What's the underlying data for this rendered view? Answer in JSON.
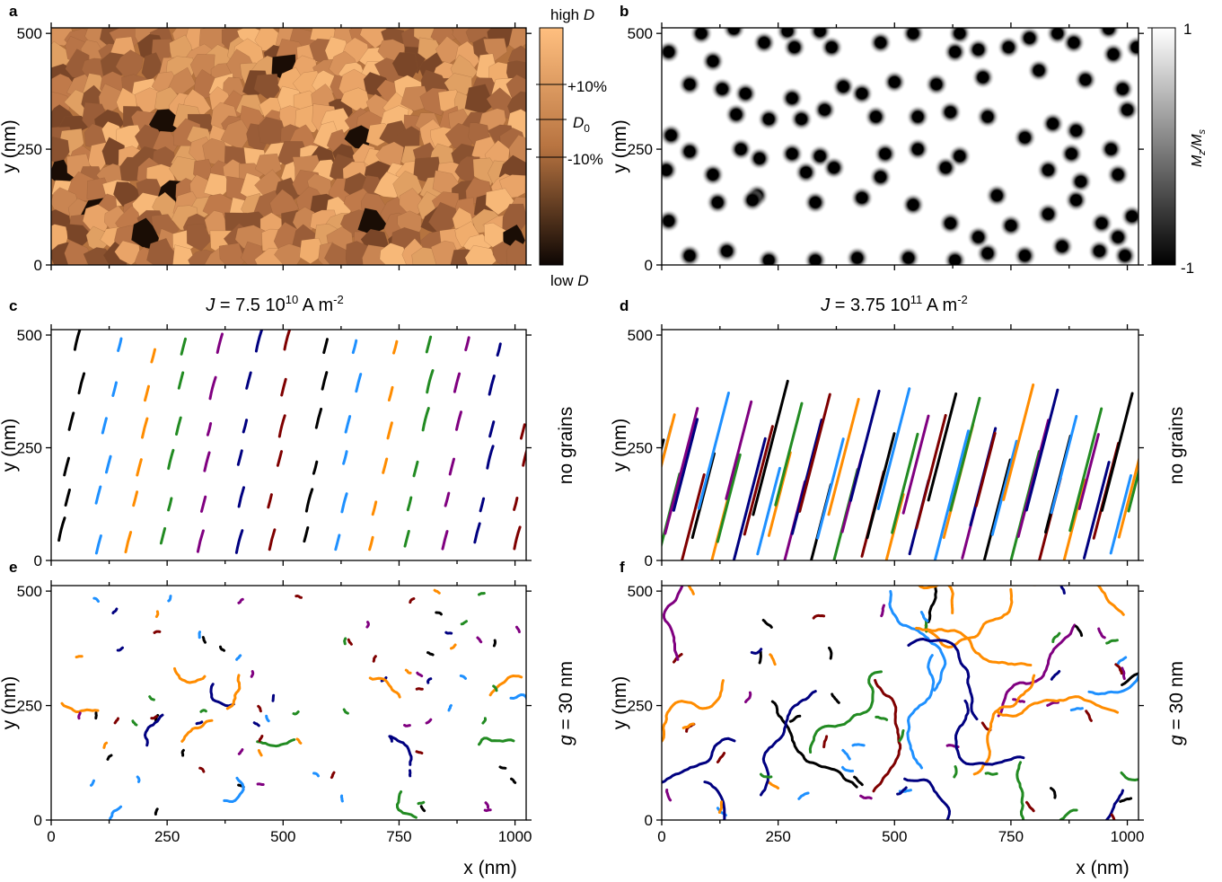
{
  "figure": {
    "panel_letters": [
      "a",
      "b",
      "c",
      "d",
      "e",
      "f"
    ],
    "colorbar_a": {
      "top": "high D",
      "bottom": "low D",
      "ticks": [
        "+10%",
        "D0",
        "-10%"
      ],
      "tick_subscript": "0",
      "tick_values": [
        0.1,
        0.0,
        -0.1
      ]
    },
    "colorbar_b": {
      "label": "Mz/Ms",
      "ticks": [
        "1",
        "-1"
      ],
      "range": [
        -1,
        1
      ]
    },
    "current_c": "J = 7.5 10^10 A m^-2",
    "current_d": "J = 3.75 10^11 A m^-2",
    "row_label_top": "no grains",
    "row_label_bottom": "g = 30 nm"
  },
  "chart_data": [
    {
      "panel": "a",
      "type": "heatmap",
      "description_values": "grain map of DMI strength D around D0",
      "xlabel": "",
      "ylabel": "y (nm)",
      "xlim": [
        0,
        1024
      ],
      "ylim": [
        0,
        512
      ],
      "yticks": [
        0,
        250,
        500
      ]
    },
    {
      "panel": "b",
      "type": "heatmap",
      "description_values": "skyrmion lattice Mz/Ms",
      "xlabel": "",
      "ylabel": "y (nm)",
      "xlim": [
        0,
        1024
      ],
      "ylim": [
        0,
        512
      ],
      "yticks": [
        0,
        250,
        500
      ],
      "skyrmions": [
        [
          85,
          500
        ],
        [
          155,
          510
        ],
        [
          270,
          505
        ],
        [
          340,
          505
        ],
        [
          540,
          500
        ],
        [
          640,
          500
        ],
        [
          850,
          500
        ],
        [
          960,
          510
        ],
        [
          15,
          460
        ],
        [
          110,
          440
        ],
        [
          220,
          480
        ],
        [
          285,
          470
        ],
        [
          365,
          470
        ],
        [
          470,
          480
        ],
        [
          630,
          460
        ],
        [
          680,
          465
        ],
        [
          745,
          470
        ],
        [
          790,
          490
        ],
        [
          885,
          480
        ],
        [
          970,
          455
        ],
        [
          1020,
          470
        ],
        [
          60,
          390
        ],
        [
          130,
          380
        ],
        [
          180,
          370
        ],
        [
          280,
          360
        ],
        [
          390,
          385
        ],
        [
          430,
          370
        ],
        [
          500,
          395
        ],
        [
          590,
          390
        ],
        [
          690,
          405
        ],
        [
          810,
          420
        ],
        [
          910,
          400
        ],
        [
          990,
          380
        ],
        [
          160,
          325
        ],
        [
          230,
          315
        ],
        [
          300,
          315
        ],
        [
          350,
          335
        ],
        [
          460,
          320
        ],
        [
          550,
          320
        ],
        [
          620,
          330
        ],
        [
          700,
          320
        ],
        [
          840,
          305
        ],
        [
          890,
          290
        ],
        [
          1000,
          335
        ],
        [
          60,
          245
        ],
        [
          170,
          250
        ],
        [
          210,
          230
        ],
        [
          280,
          240
        ],
        [
          340,
          235
        ],
        [
          480,
          240
        ],
        [
          550,
          250
        ],
        [
          640,
          235
        ],
        [
          780,
          275
        ],
        [
          880,
          240
        ],
        [
          965,
          250
        ],
        [
          10,
          205
        ],
        [
          110,
          195
        ],
        [
          205,
          150
        ],
        [
          310,
          200
        ],
        [
          370,
          210
        ],
        [
          470,
          190
        ],
        [
          610,
          210
        ],
        [
          720,
          150
        ],
        [
          830,
          205
        ],
        [
          900,
          180
        ],
        [
          980,
          195
        ],
        [
          15,
          95
        ],
        [
          120,
          135
        ],
        [
          195,
          140
        ],
        [
          330,
          135
        ],
        [
          430,
          145
        ],
        [
          540,
          130
        ],
        [
          750,
          85
        ],
        [
          830,
          110
        ],
        [
          890,
          140
        ],
        [
          945,
          90
        ],
        [
          1010,
          105
        ],
        [
          60,
          20
        ],
        [
          140,
          30
        ],
        [
          230,
          10
        ],
        [
          330,
          10
        ],
        [
          420,
          15
        ],
        [
          530,
          15
        ],
        [
          630,
          10
        ],
        [
          700,
          25
        ],
        [
          780,
          20
        ],
        [
          860,
          40
        ],
        [
          940,
          30
        ],
        [
          995,
          20
        ],
        [
          20,
          280
        ],
        [
          620,
          90
        ],
        [
          680,
          60
        ],
        [
          980,
          60
        ]
      ]
    },
    {
      "panel": "c",
      "type": "scatter",
      "description_values": "skyrmion trajectories, no grains",
      "xlabel": "",
      "ylabel": "y (nm)",
      "xlim": [
        0,
        1024
      ],
      "ylim": [
        0,
        512
      ],
      "yticks": [
        0,
        250,
        500
      ]
    },
    {
      "panel": "d",
      "type": "scatter",
      "description_values": "skyrmion trajectories, no grains",
      "xlabel": "",
      "ylabel": "y (nm)",
      "xlim": [
        0,
        1024
      ],
      "ylim": [
        0,
        512
      ],
      "yticks": [
        0,
        250,
        500
      ]
    },
    {
      "panel": "e",
      "type": "scatter",
      "description_values": "skyrmion trajectories, g = 30 nm",
      "xlabel": "x (nm)",
      "ylabel": "y (nm)",
      "xlim": [
        0,
        1024
      ],
      "ylim": [
        0,
        512
      ],
      "xticks": [
        0,
        250,
        500,
        750,
        1000
      ],
      "yticks": [
        0,
        250,
        500
      ]
    },
    {
      "panel": "f",
      "type": "scatter",
      "description_values": "skyrmion trajectories, g = 30 nm",
      "xlabel": "x (nm)",
      "ylabel": "y (nm)",
      "xlim": [
        0,
        1024
      ],
      "ylim": [
        0,
        512
      ],
      "xticks": [
        0,
        250,
        500,
        750,
        1000
      ],
      "yticks": [
        0,
        250,
        500
      ]
    }
  ],
  "colors": {
    "trajectory": [
      "#000000",
      "#1e90ff",
      "#ff8c00",
      "#228b22",
      "#800080",
      "#000080",
      "#7f0000"
    ],
    "grain_light": "#f5b375",
    "grain_dark": "#1a0d05"
  }
}
